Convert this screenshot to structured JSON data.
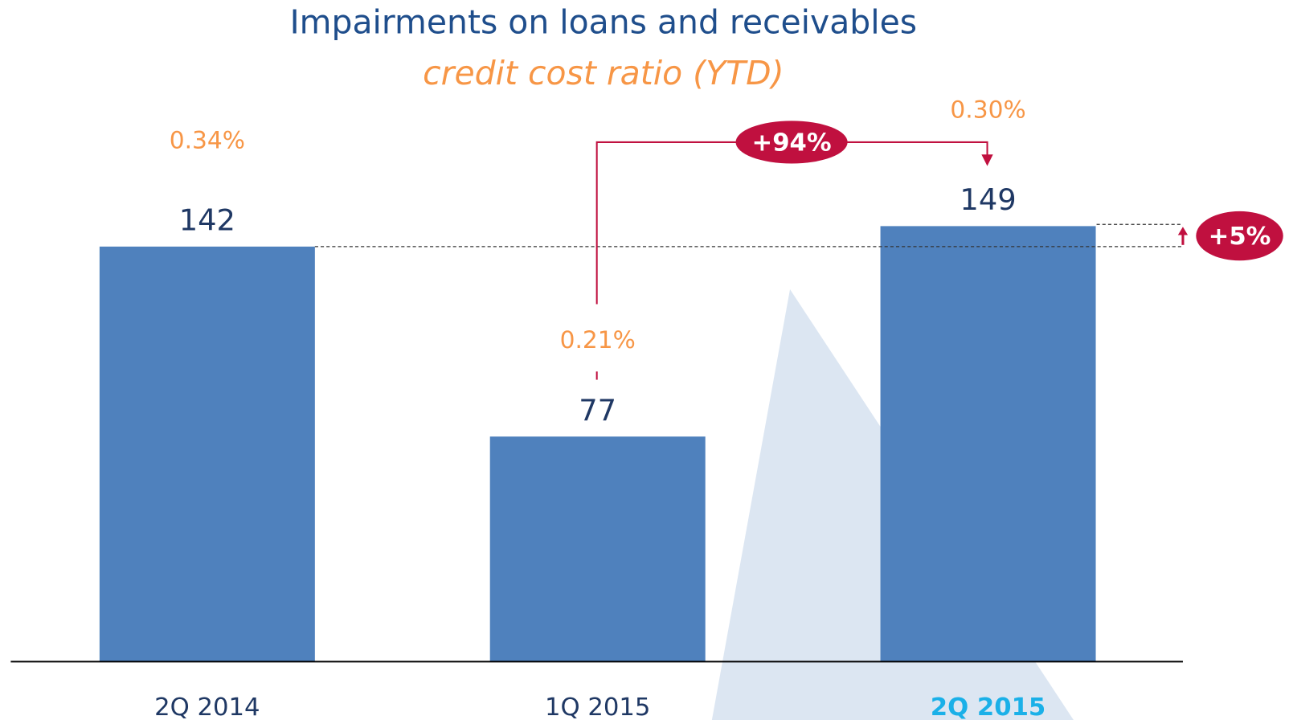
{
  "chart_data": {
    "type": "bar",
    "title": "Impairments on loans and receivables",
    "subtitle": "credit cost ratio (YTD)",
    "categories": [
      "2Q 2014",
      "1Q 2015",
      "2Q 2015"
    ],
    "values": [
      142,
      77,
      149
    ],
    "color": "#4f81bd",
    "ratios": [
      0.34,
      0.21,
      0.3
    ],
    "ratio_labels": [
      "0.34%",
      "0.21%",
      "0.30%"
    ],
    "annotations": [
      "+94%",
      "+5%"
    ]
  }
}
